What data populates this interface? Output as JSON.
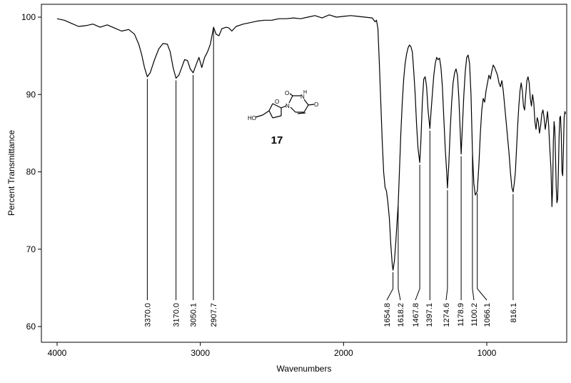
{
  "chart_data": {
    "type": "line",
    "title": "",
    "xlabel": "Wavenumbers",
    "ylabel": "Percent Transmittance",
    "xlim": [
      4000,
      450
    ],
    "ylim": [
      58,
      102
    ],
    "x_ticks": [
      4000,
      3000,
      2000,
      1000
    ],
    "x_tick_labels": [
      "4000",
      "3000",
      "2000",
      "1000"
    ],
    "y_ticks": [
      60,
      70,
      80,
      90,
      100
    ],
    "y_tick_labels": [
      "60",
      "70",
      "80",
      "90",
      "100"
    ],
    "grid": false,
    "legend": "none",
    "series": [
      {
        "points": [
          [
            4000,
            99.8
          ],
          [
            3950,
            99.6
          ],
          [
            3900,
            99.2
          ],
          [
            3850,
            98.8
          ],
          [
            3800,
            98.9
          ],
          [
            3750,
            99.1
          ],
          [
            3700,
            98.7
          ],
          [
            3650,
            99.0
          ],
          [
            3600,
            98.6
          ],
          [
            3550,
            98.2
          ],
          [
            3500,
            98.4
          ],
          [
            3460,
            97.8
          ],
          [
            3430,
            96.5
          ],
          [
            3410,
            95.2
          ],
          [
            3390,
            93.5
          ],
          [
            3370,
            92.3
          ],
          [
            3350,
            92.8
          ],
          [
            3320,
            94.5
          ],
          [
            3290,
            95.9
          ],
          [
            3260,
            96.6
          ],
          [
            3230,
            96.5
          ],
          [
            3210,
            95.5
          ],
          [
            3190,
            93.5
          ],
          [
            3170,
            92.1
          ],
          [
            3150,
            92.5
          ],
          [
            3130,
            93.5
          ],
          [
            3110,
            94.5
          ],
          [
            3090,
            94.4
          ],
          [
            3070,
            93.3
          ],
          [
            3050,
            92.8
          ],
          [
            3030,
            93.8
          ],
          [
            3010,
            94.8
          ],
          [
            2990,
            93.5
          ],
          [
            2970,
            94.8
          ],
          [
            2950,
            95.5
          ],
          [
            2930,
            96.5
          ],
          [
            2907.7,
            98.7
          ],
          [
            2890,
            97.8
          ],
          [
            2870,
            97.6
          ],
          [
            2850,
            98.5
          ],
          [
            2820,
            98.7
          ],
          [
            2800,
            98.6
          ],
          [
            2780,
            98.2
          ],
          [
            2750,
            98.8
          ],
          [
            2700,
            99.1
          ],
          [
            2650,
            99.3
          ],
          [
            2600,
            99.5
          ],
          [
            2550,
            99.6
          ],
          [
            2500,
            99.6
          ],
          [
            2450,
            99.8
          ],
          [
            2400,
            99.8
          ],
          [
            2350,
            99.9
          ],
          [
            2300,
            99.8
          ],
          [
            2250,
            100.0
          ],
          [
            2200,
            100.2
          ],
          [
            2150,
            99.9
          ],
          [
            2100,
            100.3
          ],
          [
            2050,
            100.0
          ],
          [
            2000,
            100.1
          ],
          [
            1950,
            100.2
          ],
          [
            1900,
            100.1
          ],
          [
            1850,
            100.0
          ],
          [
            1800,
            99.9
          ],
          [
            1780,
            99.4
          ],
          [
            1770,
            99.6
          ],
          [
            1760,
            98.5
          ],
          [
            1750,
            94.0
          ],
          [
            1740,
            89.0
          ],
          [
            1730,
            84.0
          ],
          [
            1720,
            80.0
          ],
          [
            1710,
            78.0
          ],
          [
            1700,
            77.5
          ],
          [
            1690,
            76.0
          ],
          [
            1680,
            74.0
          ],
          [
            1670,
            70.5
          ],
          [
            1660,
            68.0
          ],
          [
            1654.8,
            67.3
          ],
          [
            1645,
            68.5
          ],
          [
            1635,
            71.0
          ],
          [
            1625,
            74.0
          ],
          [
            1618.2,
            75.8
          ],
          [
            1610,
            80.0
          ],
          [
            1600,
            85.0
          ],
          [
            1590,
            89.0
          ],
          [
            1580,
            92.0
          ],
          [
            1570,
            94.0
          ],
          [
            1560,
            95.2
          ],
          [
            1550,
            96.0
          ],
          [
            1540,
            96.4
          ],
          [
            1530,
            96.2
          ],
          [
            1520,
            95.5
          ],
          [
            1510,
            93.0
          ],
          [
            1500,
            90.0
          ],
          [
            1490,
            86.0
          ],
          [
            1480,
            83.0
          ],
          [
            1467.8,
            81.2
          ],
          [
            1460,
            84.0
          ],
          [
            1450,
            89.0
          ],
          [
            1440,
            92.0
          ],
          [
            1430,
            92.3
          ],
          [
            1420,
            91.0
          ],
          [
            1410,
            88.0
          ],
          [
            1397.1,
            85.6
          ],
          [
            1390,
            87.5
          ],
          [
            1380,
            90.0
          ],
          [
            1370,
            92.5
          ],
          [
            1360,
            94.0
          ],
          [
            1350,
            94.8
          ],
          [
            1340,
            94.5
          ],
          [
            1330,
            94.7
          ],
          [
            1320,
            93.5
          ],
          [
            1310,
            91.0
          ],
          [
            1300,
            87.0
          ],
          [
            1290,
            83.0
          ],
          [
            1280,
            80.0
          ],
          [
            1274.6,
            77.9
          ],
          [
            1265,
            81.0
          ],
          [
            1255,
            85.5
          ],
          [
            1245,
            89.0
          ],
          [
            1235,
            91.5
          ],
          [
            1225,
            92.8
          ],
          [
            1215,
            93.3
          ],
          [
            1205,
            92.5
          ],
          [
            1195,
            89.5
          ],
          [
            1185,
            85.0
          ],
          [
            1178.9,
            82.3
          ],
          [
            1170,
            86.0
          ],
          [
            1160,
            90.0
          ],
          [
            1150,
            93.0
          ],
          [
            1140,
            94.8
          ],
          [
            1130,
            95.1
          ],
          [
            1120,
            94.0
          ],
          [
            1110,
            90.0
          ],
          [
            1100.2,
            82.6
          ],
          [
            1090,
            78.5
          ],
          [
            1080,
            77.0
          ],
          [
            1066.1,
            77.5
          ],
          [
            1055,
            81.0
          ],
          [
            1045,
            85.0
          ],
          [
            1035,
            88.0
          ],
          [
            1025,
            89.5
          ],
          [
            1015,
            89.0
          ],
          [
            1005,
            90.5
          ],
          [
            995,
            91.5
          ],
          [
            985,
            92.5
          ],
          [
            975,
            92.0
          ],
          [
            965,
            93.0
          ],
          [
            955,
            93.8
          ],
          [
            945,
            93.5
          ],
          [
            935,
            93.0
          ],
          [
            925,
            92.5
          ],
          [
            915,
            91.5
          ],
          [
            905,
            91.0
          ],
          [
            895,
            91.8
          ],
          [
            885,
            90.5
          ],
          [
            875,
            88.5
          ],
          [
            865,
            86.5
          ],
          [
            855,
            84.5
          ],
          [
            845,
            82.5
          ],
          [
            835,
            80.0
          ],
          [
            825,
            78.0
          ],
          [
            816.1,
            77.4
          ],
          [
            808,
            78.5
          ],
          [
            800,
            80.0
          ],
          [
            792,
            83.0
          ],
          [
            784,
            86.0
          ],
          [
            776,
            88.5
          ],
          [
            768,
            90.5
          ],
          [
            760,
            91.5
          ],
          [
            752,
            90.5
          ],
          [
            744,
            88.5
          ],
          [
            736,
            88.0
          ],
          [
            728,
            90.0
          ],
          [
            720,
            91.8
          ],
          [
            712,
            92.3
          ],
          [
            704,
            91.5
          ],
          [
            696,
            89.5
          ],
          [
            688,
            88.5
          ],
          [
            680,
            90.0
          ],
          [
            672,
            89.0
          ],
          [
            664,
            86.5
          ],
          [
            656,
            85.5
          ],
          [
            648,
            87.0
          ],
          [
            640,
            86.5
          ],
          [
            632,
            85.0
          ],
          [
            624,
            86.0
          ],
          [
            616,
            87.5
          ],
          [
            608,
            88.0
          ],
          [
            600,
            87.0
          ],
          [
            592,
            85.5
          ],
          [
            584,
            86.5
          ],
          [
            576,
            87.8
          ],
          [
            568,
            86.0
          ],
          [
            560,
            83.0
          ],
          [
            552,
            80.5
          ],
          [
            545,
            75.5
          ],
          [
            540,
            78.0
          ],
          [
            535,
            84.0
          ],
          [
            530,
            86.5
          ],
          [
            525,
            85.5
          ],
          [
            520,
            82.0
          ],
          [
            515,
            78.0
          ],
          [
            510,
            76.0
          ],
          [
            505,
            76.5
          ],
          [
            500,
            80.0
          ],
          [
            495,
            84.5
          ],
          [
            490,
            87.0
          ],
          [
            485,
            87.2
          ],
          [
            480,
            85.0
          ],
          [
            475,
            80.0
          ],
          [
            470,
            79.5
          ],
          [
            465,
            83.0
          ],
          [
            460,
            87.0
          ],
          [
            455,
            87.8
          ],
          [
            450,
            87.5
          ]
        ]
      }
    ],
    "peak_labels": [
      {
        "x": 3370.0,
        "y": 92.3,
        "label": "3370.0"
      },
      {
        "x": 3170.0,
        "y": 92.1,
        "label": "3170.0"
      },
      {
        "x": 3050.1,
        "y": 92.8,
        "label": "3050.1"
      },
      {
        "x": 2907.7,
        "y": 98.7,
        "label": "2907.7"
      },
      {
        "x": 1654.8,
        "y": 67.3,
        "label": "1654.8"
      },
      {
        "x": 1618.2,
        "y": 75.8,
        "label": "1618.2"
      },
      {
        "x": 1467.8,
        "y": 81.2,
        "label": "1467.8"
      },
      {
        "x": 1397.1,
        "y": 85.6,
        "label": "1397.1"
      },
      {
        "x": 1274.6,
        "y": 77.9,
        "label": "1274.6"
      },
      {
        "x": 1178.9,
        "y": 82.3,
        "label": "1178.9"
      },
      {
        "x": 1100.2,
        "y": 82.6,
        "label": "1100.2"
      },
      {
        "x": 1066.1,
        "y": 77.5,
        "label": "1066.1"
      },
      {
        "x": 816.1,
        "y": 77.4,
        "label": "816.1"
      }
    ],
    "annotations": {
      "compound_number": "17",
      "atom_labels": {
        "ho": "HO",
        "o_ring": "O",
        "n1": "N",
        "n3": "N",
        "h3": "H",
        "o2": "O",
        "o4": "O"
      }
    },
    "colors": {
      "line": "#000000",
      "axis": "#000000",
      "background": "#ffffff"
    }
  }
}
